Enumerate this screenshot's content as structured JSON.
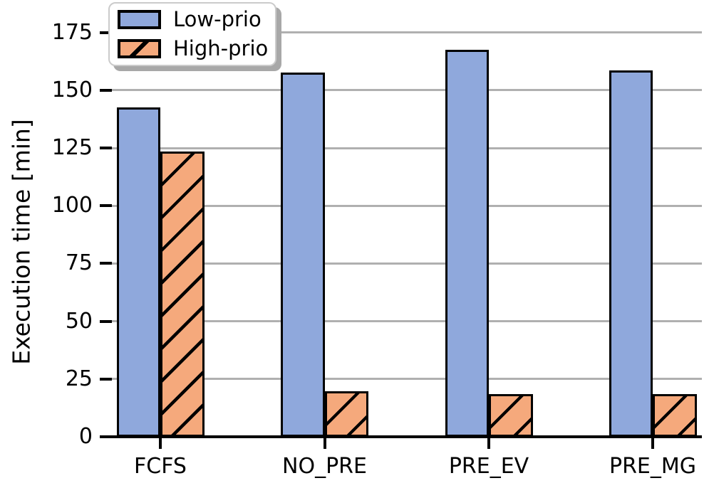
{
  "chart_data": {
    "type": "bar",
    "categories": [
      "FCFS",
      "NO_PRE",
      "PRE_EV",
      "PRE_MG"
    ],
    "series": [
      {
        "name": "Low-prio",
        "values": [
          142,
          157,
          167,
          158
        ],
        "color": "#8FA8DC",
        "hatch": "none"
      },
      {
        "name": "High-prio",
        "values": [
          123,
          19,
          18,
          18
        ],
        "color": "#F5A97C",
        "hatch": "/"
      }
    ],
    "title": "",
    "xlabel": "",
    "ylabel": "Execution time [min]",
    "ylim": [
      0,
      189
    ],
    "y_ticks": [
      0,
      25,
      50,
      75,
      100,
      125,
      150,
      175
    ],
    "grid": "horizontal gridlines on y ticks",
    "grid_color": "#b0b0b0",
    "bar_edge_color": "#000000",
    "legend": {
      "position": "upper left",
      "items": [
        "Low-prio",
        "High-prio"
      ]
    }
  }
}
